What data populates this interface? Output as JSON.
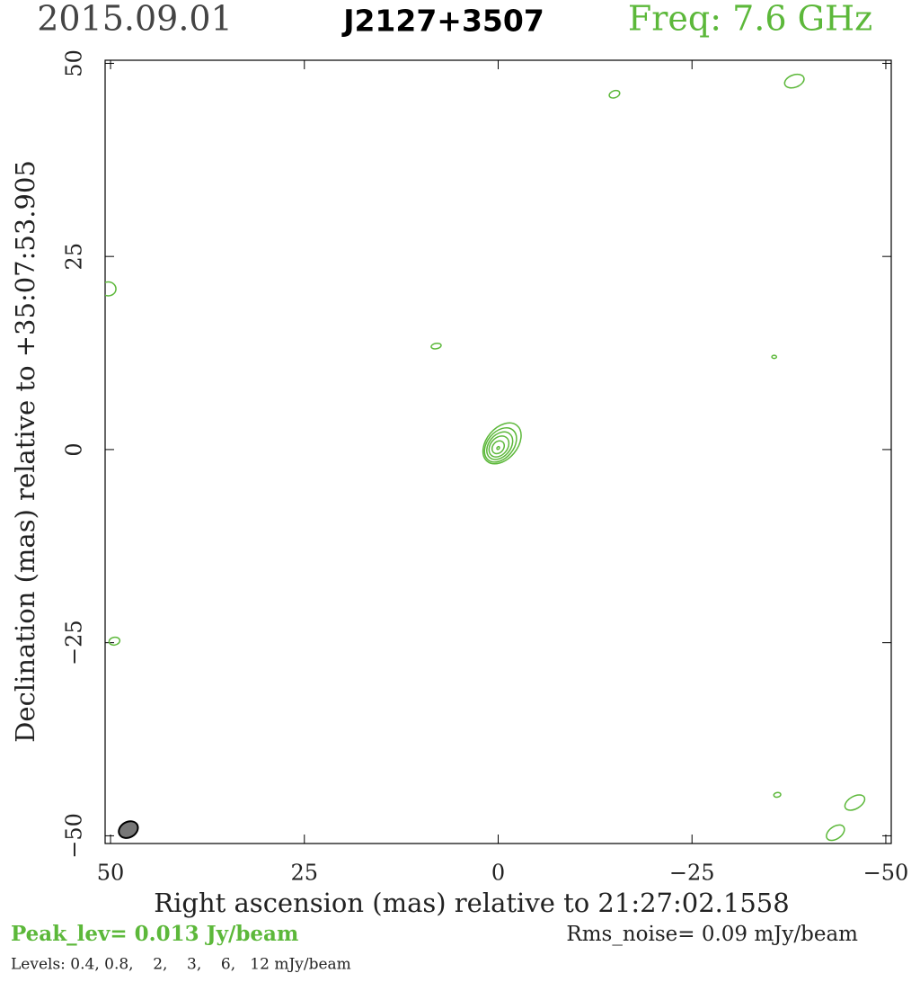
{
  "chart_data": {
    "type": "contour",
    "date": "2015.09.01",
    "title": "J2127+3507",
    "frequency": "Freq: 7.6 GHz",
    "xlabel": "Right ascension (mas) relative to 21:27:02.1558",
    "ylabel": "Declination (mas) relative to +35:07:53.905",
    "peak": "Peak_lev=  0.013 Jy/beam",
    "rms": "Rms_noise= 0.09 mJy/beam",
    "levels": "Levels: 0.4, 0.8,    2,    3,    6,   12 mJy/beam",
    "xlim": [
      50.7,
      -50.7
    ],
    "ylim": [
      -51,
      50.4
    ],
    "xticks": [
      50,
      25,
      0,
      {
        "value": -25,
        "label": "−25"
      },
      {
        "value": -50,
        "label": "−50"
      }
    ],
    "yticks": [
      50,
      25,
      0,
      {
        "value": -25,
        "label": "−25"
      },
      {
        "value": -50,
        "label": "−50"
      }
    ],
    "color": "#5cb83a",
    "contours": [
      {
        "x": -0.5,
        "y": 0.8,
        "rx": 3.0,
        "ry": 2.0,
        "angle": -50
      },
      {
        "x": -0.3,
        "y": 0.6,
        "rx": 2.5,
        "ry": 1.7,
        "angle": -50
      },
      {
        "x": -0.2,
        "y": 0.5,
        "rx": 2.0,
        "ry": 1.4,
        "angle": -50
      },
      {
        "x": -0.1,
        "y": 0.4,
        "rx": 1.5,
        "ry": 1.1,
        "angle": -50
      },
      {
        "x": 0,
        "y": 0.3,
        "rx": 0.9,
        "ry": 0.7,
        "angle": -50
      },
      {
        "x": 0,
        "y": 0.2,
        "rx": 0.2,
        "ry": 0.15,
        "angle": -50
      },
      {
        "x": -15,
        "y": 46,
        "rx": 0.7,
        "ry": 0.45,
        "angle": -20
      },
      {
        "x": -38.2,
        "y": 47.7,
        "rx": 1.3,
        "ry": 0.8,
        "angle": -20
      },
      {
        "x": 50.3,
        "y": 20.8,
        "rx": 1.0,
        "ry": 0.9,
        "angle": 0
      },
      {
        "x": 8,
        "y": 13.4,
        "rx": 0.65,
        "ry": 0.35,
        "angle": -10
      },
      {
        "x": -35.6,
        "y": 12,
        "rx": 0.3,
        "ry": 0.2,
        "angle": 0
      },
      {
        "x": 49.5,
        "y": -24.8,
        "rx": 0.7,
        "ry": 0.5,
        "angle": -10
      },
      {
        "x": -36,
        "y": -44.7,
        "rx": 0.45,
        "ry": 0.3,
        "angle": -10
      },
      {
        "x": -46,
        "y": -45.7,
        "rx": 1.4,
        "ry": 0.8,
        "angle": -30
      },
      {
        "x": -43.5,
        "y": -49.6,
        "rx": 1.3,
        "ry": 0.8,
        "angle": -35
      }
    ],
    "beam": {
      "x": 47.7,
      "y": -49.2,
      "rx": 1.3,
      "ry": 1.0,
      "angle": -30,
      "color": "#777777"
    }
  }
}
